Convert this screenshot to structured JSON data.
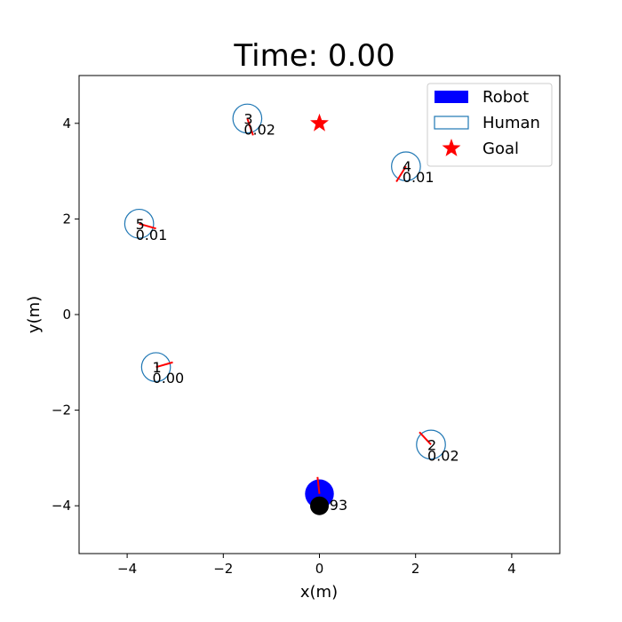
{
  "chart_data": {
    "type": "scatter",
    "title": "Time: 0.00",
    "xlabel": "x(m)",
    "ylabel": "y(m)",
    "xlim": [
      -5,
      5
    ],
    "ylim": [
      -5,
      5
    ],
    "xticks": [
      -4,
      -2,
      0,
      2,
      4
    ],
    "yticks": [
      -4,
      -2,
      0,
      2,
      4
    ],
    "grid": false,
    "legend": {
      "placement": "top-right",
      "entries": [
        {
          "label": "Robot",
          "color": "#0000ff",
          "marker": "filled-rect"
        },
        {
          "label": "Human",
          "color": "#1f77b4",
          "marker": "hollow-rect"
        },
        {
          "label": "Goal",
          "color": "#ff0000",
          "marker": "star"
        }
      ]
    },
    "radius": 0.3,
    "robot": {
      "x": 0.0,
      "y": -3.75,
      "heading": [
        -0.04,
        0.35
      ],
      "value_label": "0.93",
      "color": "#0000ff"
    },
    "robot_start": {
      "x": 0.0,
      "y": -4.0,
      "color": "#000000"
    },
    "goal": {
      "x": 0.0,
      "y": 4.0,
      "color": "#ff0000"
    },
    "humans": [
      {
        "id": "1",
        "x": -3.4,
        "y": -1.1,
        "value": "0.00",
        "heading": [
          0.35,
          0.1
        ]
      },
      {
        "id": "2",
        "x": 2.32,
        "y": -2.72,
        "value": "0.02",
        "heading": [
          -0.24,
          0.26
        ]
      },
      {
        "id": "3",
        "x": -1.5,
        "y": 4.1,
        "value": "0.02",
        "heading": [
          0.12,
          -0.35
        ]
      },
      {
        "id": "4",
        "x": 1.8,
        "y": 3.1,
        "value": "0.01",
        "heading": [
          -0.2,
          -0.32
        ]
      },
      {
        "id": "5",
        "x": -3.75,
        "y": 1.9,
        "value": "0.01",
        "heading": [
          0.35,
          -0.1
        ]
      }
    ],
    "human_color": "#1f77b4",
    "heading_color": "#ff0000"
  }
}
